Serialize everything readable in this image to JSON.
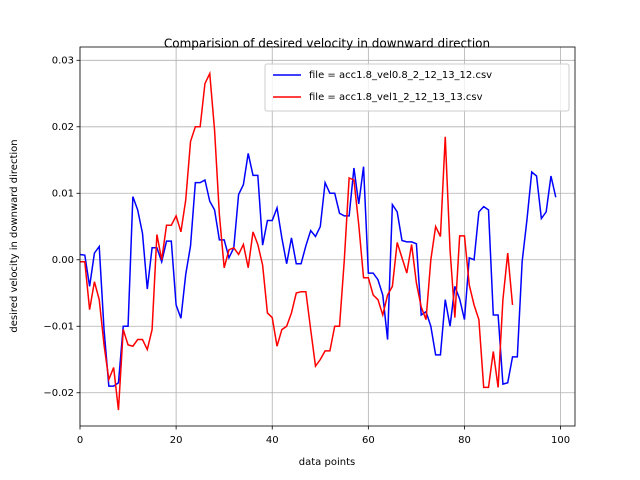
{
  "chart_data": {
    "type": "line",
    "title": "Comparision of desired velocity in downward direction",
    "x_label": "data points",
    "y_label": "desired velocity in downward direction",
    "x": [
      0,
      1,
      2,
      3,
      4,
      5,
      6,
      7,
      8,
      9,
      10,
      11,
      12,
      13,
      14,
      15,
      16,
      17,
      18,
      19,
      20,
      21,
      22,
      23,
      24,
      25,
      26,
      27,
      28,
      29,
      30,
      31,
      32,
      33,
      34,
      35,
      36,
      37,
      38,
      39,
      40,
      41,
      42,
      43,
      44,
      45,
      46,
      47,
      48,
      49,
      50,
      51,
      52,
      53,
      54,
      55,
      56,
      57,
      58,
      59,
      60,
      61,
      62,
      63,
      64,
      65,
      66,
      67,
      68,
      69,
      70,
      71,
      72,
      73,
      74,
      75,
      76,
      77,
      78,
      79,
      80,
      81,
      82,
      83,
      84,
      85,
      86,
      87,
      88,
      89,
      90,
      91,
      92,
      93,
      94,
      95,
      96,
      97,
      98,
      99
    ],
    "series": [
      {
        "name": "file = acc1.8_vel0.8_2_12_13_12.csv",
        "color": "#0000ff",
        "values": [
          0.0008,
          0.0007,
          -0.004,
          0.001,
          0.002,
          -0.0105,
          -0.019,
          -0.019,
          -0.0185,
          -0.01,
          -0.01,
          0.0095,
          0.0075,
          0.004,
          -0.0044,
          0.0018,
          0.0018,
          -0.0003,
          0.0028,
          0.0028,
          -0.0068,
          -0.0088,
          -0.0022,
          0.0021,
          0.0116,
          0.0116,
          0.012,
          0.0088,
          0.0075,
          0.003,
          0.003,
          0.0003,
          0.0018,
          0.0098,
          0.0113,
          0.016,
          0.0127,
          0.0127,
          0.0022,
          0.0059,
          0.0059,
          0.0078,
          0.0033,
          -0.0006,
          0.0033,
          -0.0006,
          -0.0006,
          0.0021,
          0.0044,
          0.0035,
          0.005,
          0.0116,
          0.01,
          0.01,
          0.007,
          0.0066,
          0.0066,
          0.0138,
          0.0084,
          0.014,
          -0.002,
          -0.002,
          -0.003,
          -0.0053,
          -0.012,
          0.0083,
          0.0072,
          0.0029,
          0.0027,
          0.0027,
          0.0024,
          -0.0083,
          -0.0078,
          -0.01,
          -0.0143,
          -0.0143,
          -0.006,
          -0.01,
          -0.004,
          -0.0059,
          -0.009,
          0.0003,
          0,
          0.0072,
          0.008,
          0.0075,
          -0.0083,
          -0.0083,
          -0.0187,
          -0.0185,
          -0.0146,
          -0.0146,
          -0.0003,
          0.006,
          0.0132,
          0.0126,
          0.0062,
          0.0072,
          0.0126,
          0.0094
        ]
      },
      {
        "name": "file = acc1.8_vel1_2_12_13_13.csv",
        "color": "#ff0000",
        "values": [
          -0.0003,
          -0.0003,
          -0.0075,
          -0.0033,
          -0.006,
          -0.0128,
          -0.018,
          -0.0162,
          -0.0226,
          -0.0105,
          -0.0128,
          -0.013,
          -0.012,
          -0.012,
          -0.0135,
          -0.0105,
          0.0038,
          0,
          0.0052,
          0.0052,
          0.0066,
          0.0042,
          0.009,
          0.0178,
          0.02,
          0.02,
          0.0265,
          0.028,
          0.0195,
          0.0068,
          -0.0012,
          0.0015,
          0.0018,
          0.0008,
          0.0023,
          -0.0012,
          0.0042,
          0.0023,
          -0.0008,
          -0.008,
          -0.0087,
          -0.013,
          -0.0105,
          -0.01,
          -0.008,
          -0.005,
          -0.0048,
          -0.0048,
          -0.0105,
          -0.016,
          -0.015,
          -0.0137,
          -0.0137,
          -0.01,
          -0.01,
          0,
          0.0123,
          0.012,
          0.0053,
          -0.0027,
          -0.0027,
          -0.0053,
          -0.006,
          -0.0083,
          -0.0053,
          -0.004,
          0.0026,
          0.0003,
          -0.002,
          0.0023,
          -0.0035,
          -0.0071,
          -0.009,
          0,
          0.005,
          0.0035,
          0.0185,
          0.0015,
          -0.0087,
          0.0036,
          0.0036,
          -0.0038,
          -0.0068,
          -0.009,
          -0.0192,
          -0.0192,
          -0.0138,
          -0.0192,
          -0.006,
          0.001,
          -0.0068,
          null,
          null,
          null,
          null,
          null,
          null,
          null,
          null,
          null
        ]
      }
    ],
    "xlim": [
      0,
      103
    ],
    "ylim": [
      -0.025,
      0.032
    ],
    "xticks": [
      0,
      20,
      40,
      60,
      80,
      100
    ],
    "yticks": [
      {
        "value": -0.02,
        "label": "−0.02"
      },
      {
        "value": -0.01,
        "label": "−0.01"
      },
      {
        "value": 0,
        "label": "0.00"
      },
      0.01,
      0.02,
      0.03
    ],
    "grid": true,
    "legend": "upper right"
  }
}
